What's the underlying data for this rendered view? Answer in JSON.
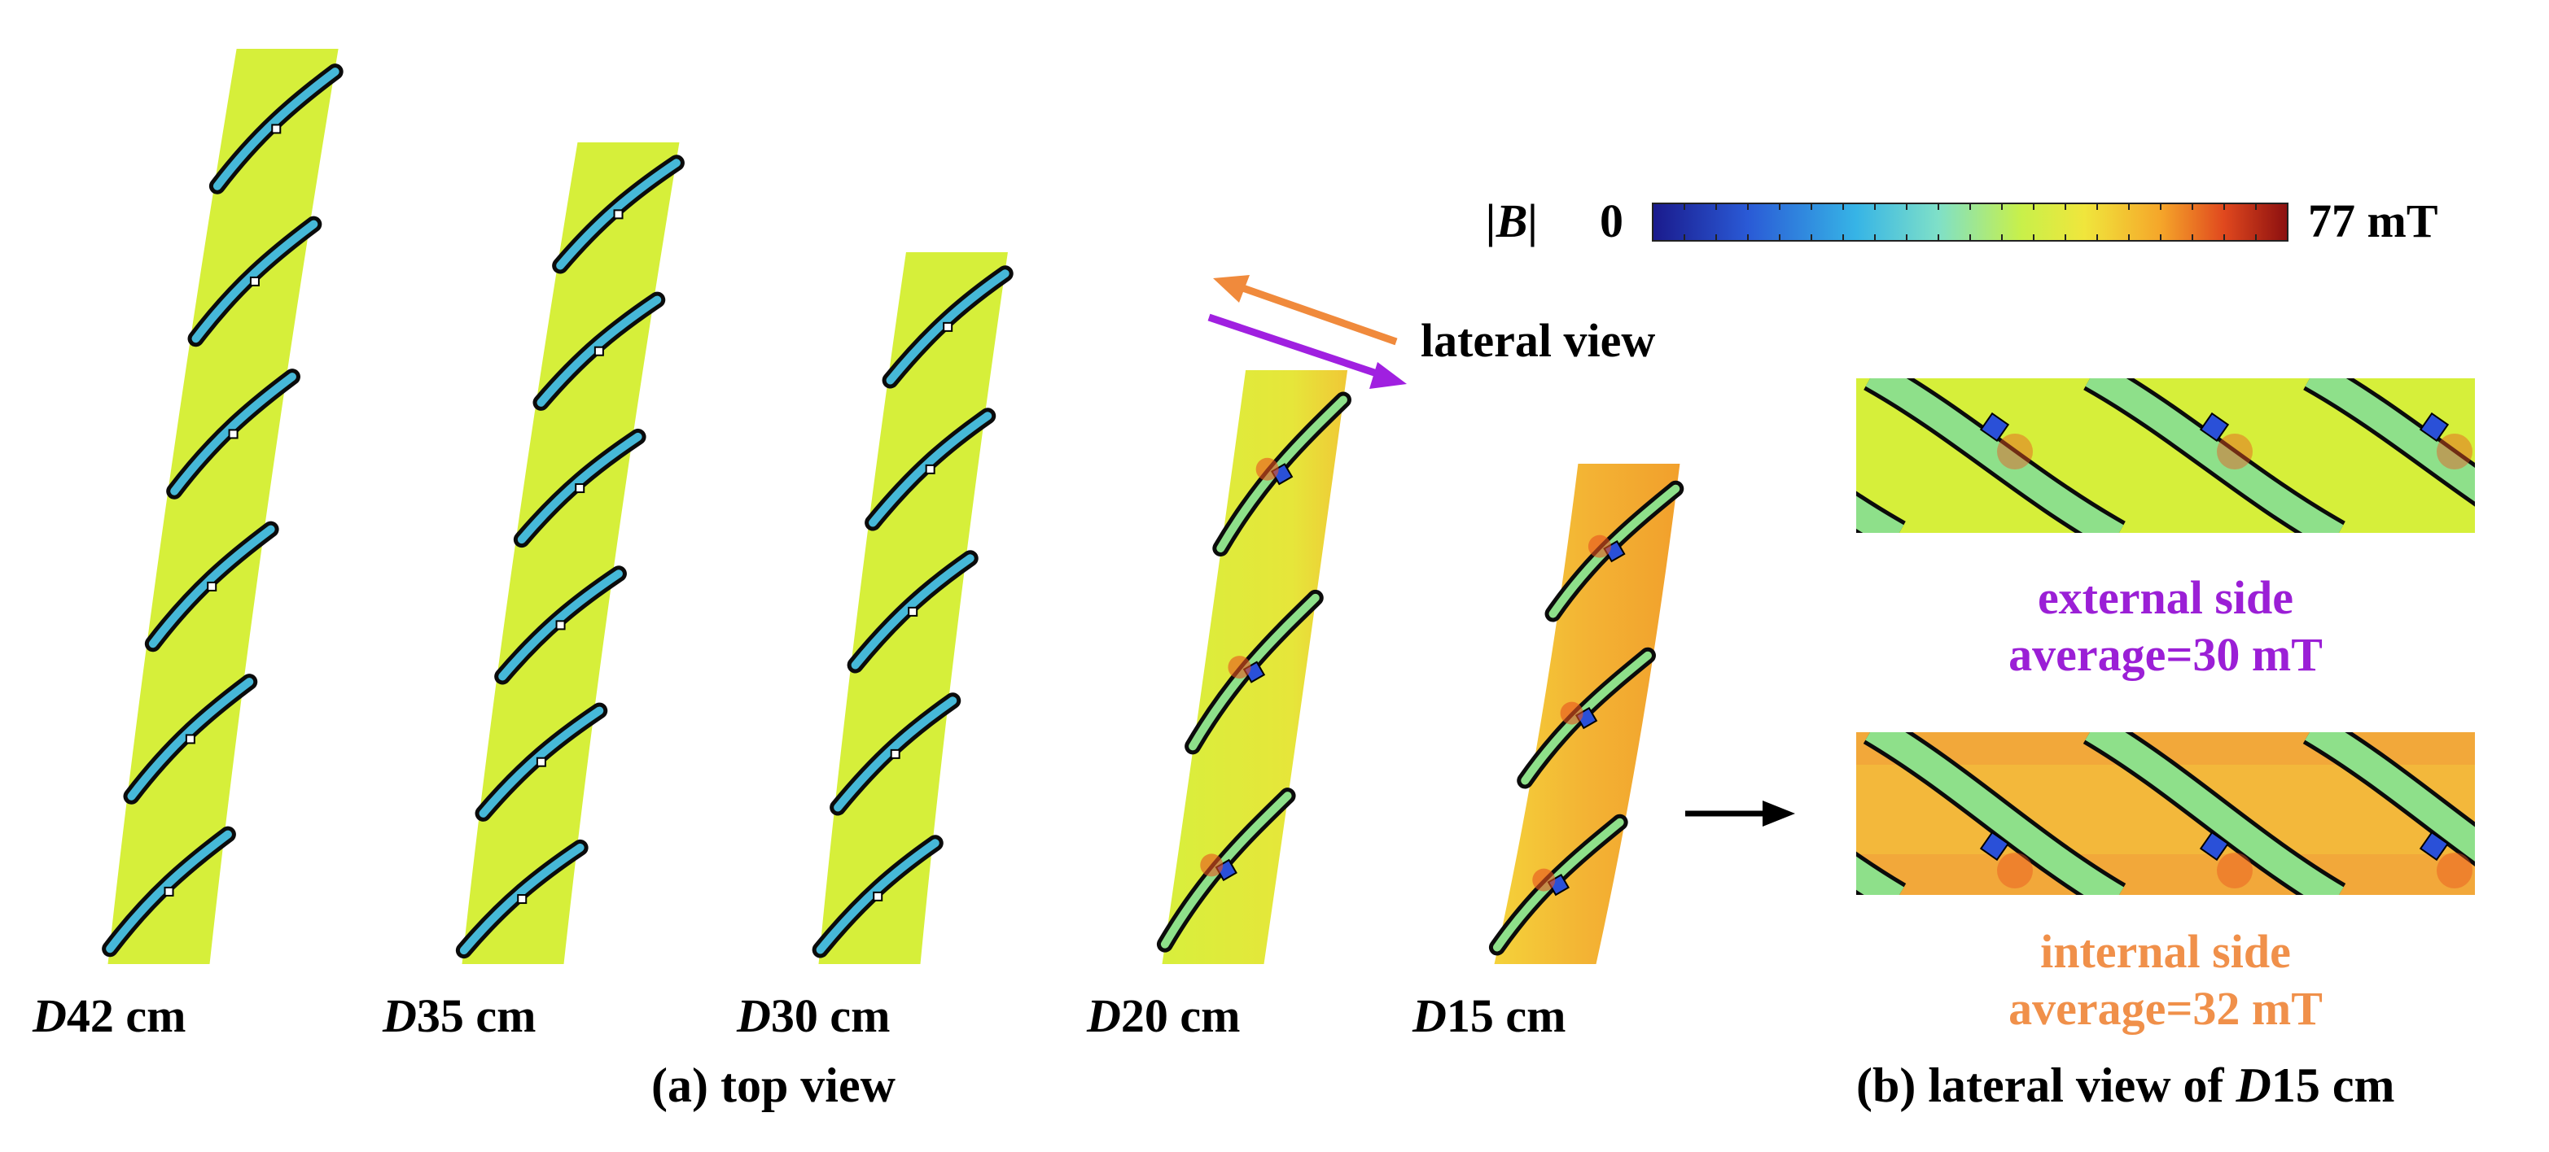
{
  "colorbar": {
    "symbol": "|B|",
    "min_label": "0",
    "max_label": "77 mT",
    "colors": [
      "#1a1a8c",
      "#2a5ad6",
      "#36b4e6",
      "#7fe0c8",
      "#c8f04a",
      "#f0e63c",
      "#f5a62a",
      "#e0481e",
      "#8b0f0f"
    ]
  },
  "top_view": {
    "cables": [
      {
        "prefix": "D",
        "value": "42 cm"
      },
      {
        "prefix": "D",
        "value": "35 cm"
      },
      {
        "prefix": "D",
        "value": "30 cm"
      },
      {
        "prefix": "D",
        "value": "20 cm"
      },
      {
        "prefix": "D",
        "value": "15 cm"
      }
    ],
    "caption": "(a) top view"
  },
  "view_arrows": {
    "label": "lateral view",
    "arrow_colors": [
      "#f08a3c",
      "#a020e0"
    ]
  },
  "lateral_view": {
    "external": {
      "title": "external side",
      "average": "average=30 mT",
      "color": "#9b1fd6"
    },
    "internal": {
      "title": "internal side",
      "average": "average=32 mT",
      "color": "#f0904a"
    },
    "caption_prefix": "(b) lateral view of ",
    "caption_italic": "D",
    "caption_suffix": "15 cm"
  },
  "field_colors": {
    "background_yellow": "#d6ef3a",
    "tape_cyan": "#46b8d8",
    "tape_green": "#8ee08a",
    "hot_orange": "#f0a030",
    "block_blue": "#2a50d8"
  }
}
